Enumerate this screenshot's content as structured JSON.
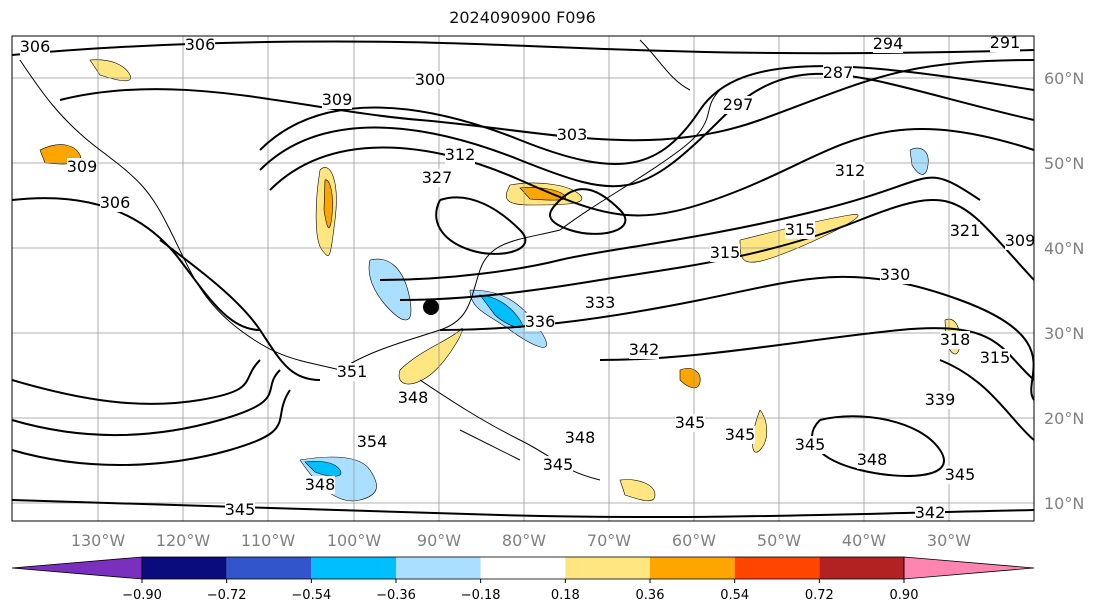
{
  "title": "2024090900 F096",
  "map": {
    "lon_ticks": [
      "130°W",
      "120°W",
      "110°W",
      "100°W",
      "90°W",
      "80°W",
      "70°W",
      "60°W",
      "50°W",
      "40°W",
      "30°W"
    ],
    "lat_ticks": [
      "60°N",
      "50°N",
      "40°N",
      "30°N",
      "20°N",
      "10°N"
    ],
    "contour_labels": [
      "306",
      "306",
      "300",
      "309",
      "294",
      "291",
      "297",
      "287",
      "303",
      "309",
      "306",
      "312",
      "327",
      "312",
      "321",
      "309",
      "330",
      "333",
      "336",
      "315",
      "315",
      "318",
      "351",
      "342",
      "315",
      "348",
      "339",
      "354",
      "348",
      "345",
      "345",
      "345",
      "348",
      "345",
      "348",
      "345",
      "342",
      "345"
    ],
    "marker": "black-dot"
  },
  "colorbar": {
    "labels": [
      "−0.90",
      "−0.72",
      "−0.54",
      "−0.36",
      "−0.18",
      "0.18",
      "0.36",
      "0.54",
      "0.72",
      "0.90"
    ],
    "colors": [
      "#7b2fbe",
      "#0b0b80",
      "#3355cc",
      "#00bfff",
      "#aadfff",
      "#ffffff",
      "#ffe680",
      "#ffa500",
      "#ff4500",
      "#b22222",
      "#ff85b0"
    ]
  }
}
